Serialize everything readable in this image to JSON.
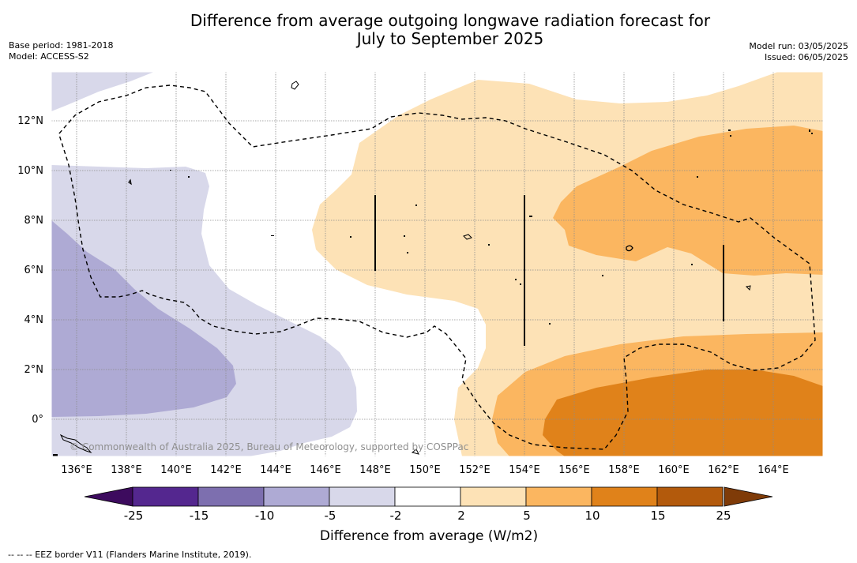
{
  "title_line1": "Difference from average outgoing longwave radiation forecast for",
  "title_line2": "July to September 2025",
  "meta_left": {
    "base_period": "Base period: 1981-2018",
    "model": "Model: ACCESS-S2"
  },
  "meta_right": {
    "model_run": "Model run: 03/05/2025",
    "issued": "Issued: 06/05/2025"
  },
  "lat_labels": [
    "12°N",
    "10°N",
    "8°N",
    "6°N",
    "4°N",
    "2°N",
    "0°"
  ],
  "lon_labels": [
    "136°E",
    "138°E",
    "140°E",
    "142°E",
    "144°E",
    "146°E",
    "148°E",
    "150°E",
    "152°E",
    "154°E",
    "156°E",
    "158°E",
    "160°E",
    "162°E",
    "164°E"
  ],
  "copyright": "© Commonwealth of Australia 2025, Bureau of Meteorology, supported by COSPPac",
  "colorbar": {
    "title": "Difference from average (W/m2)",
    "ticks": [
      "-25",
      "-15",
      "-10",
      "-5",
      "-2",
      "2",
      "5",
      "10",
      "15",
      "25"
    ],
    "colors": [
      "#54278f",
      "#7d6faf",
      "#aeaad4",
      "#d8d8ea",
      "#ffffff",
      "#fde2b6",
      "#fbb660",
      "#e0821a",
      "#b35a0c"
    ],
    "under_color": "#3d0b5e",
    "over_color": "#7f3b08"
  },
  "footnote": "--  --  -- EEZ border V11 (Flanders Marine Institute, 2019)."
}
